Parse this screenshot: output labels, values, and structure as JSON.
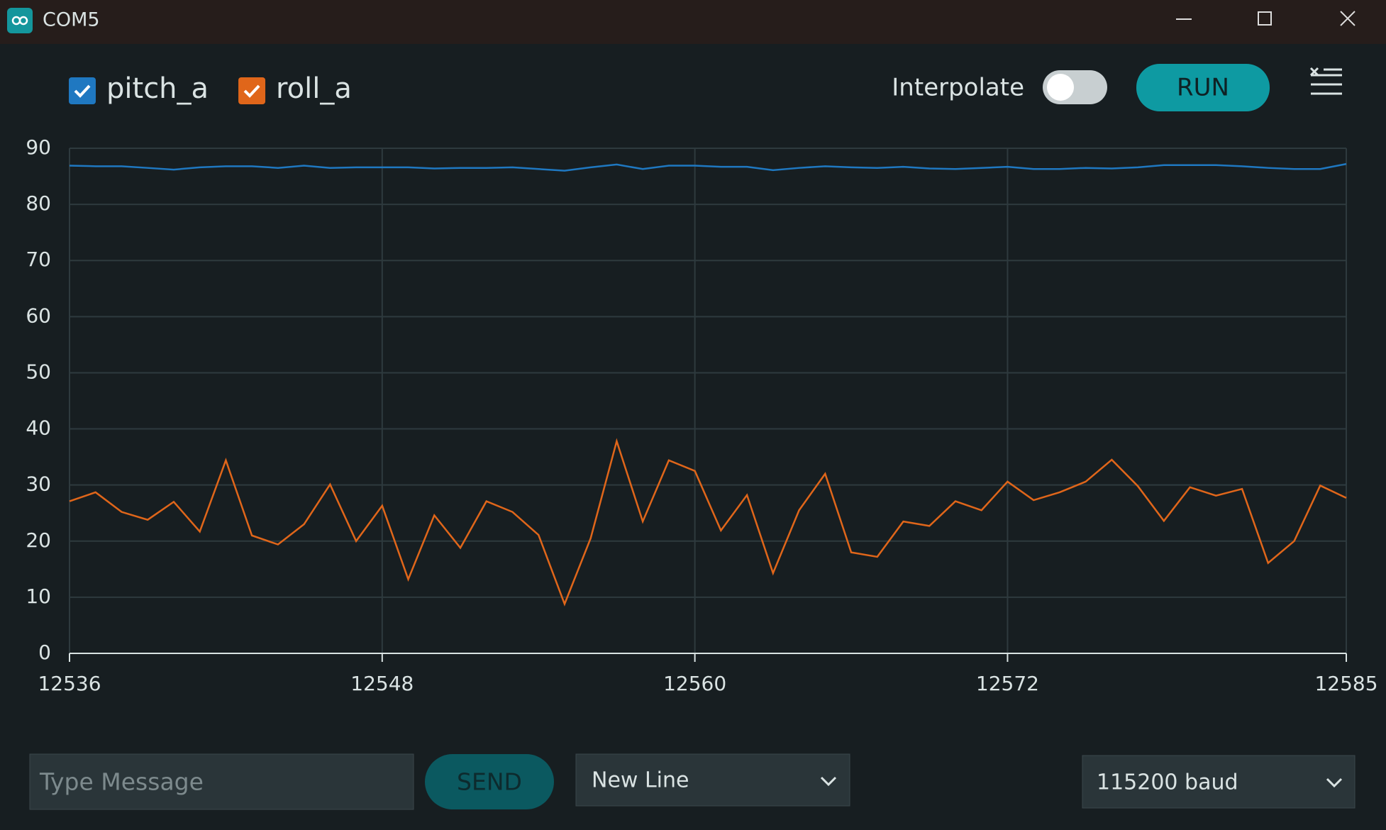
{
  "window": {
    "title": "COM5"
  },
  "controls": {
    "interpolate": "Interpolate",
    "run": "RUN"
  },
  "chart_data": {
    "type": "line",
    "x": [
      12536,
      12537,
      12538,
      12539,
      12540,
      12541,
      12542,
      12543,
      12544,
      12545,
      12546,
      12547,
      12548,
      12549,
      12550,
      12551,
      12552,
      12553,
      12554,
      12555,
      12556,
      12557,
      12558,
      12559,
      12560,
      12561,
      12562,
      12563,
      12564,
      12565,
      12566,
      12567,
      12568,
      12569,
      12570,
      12571,
      12572,
      12573,
      12574,
      12575,
      12576,
      12577,
      12578,
      12579,
      12580,
      12581,
      12582,
      12583,
      12584,
      12585
    ],
    "series": [
      {
        "name": "pitch_a",
        "color": "#1f78c1",
        "values": [
          86.9,
          86.8,
          86.8,
          86.5,
          86.2,
          86.6,
          86.8,
          86.8,
          86.5,
          86.9,
          86.5,
          86.6,
          86.6,
          86.6,
          86.4,
          86.5,
          86.5,
          86.6,
          86.3,
          86.0,
          86.6,
          87.1,
          86.3,
          86.9,
          86.9,
          86.7,
          86.7,
          86.1,
          86.5,
          86.8,
          86.6,
          86.5,
          86.7,
          86.4,
          86.3,
          86.5,
          86.7,
          86.3,
          86.3,
          86.5,
          86.4,
          86.6,
          87.0,
          87.0,
          87.0,
          86.8,
          86.5,
          86.3,
          86.3,
          87.2
        ]
      },
      {
        "name": "roll_a",
        "color": "#e0661a",
        "values": [
          27.1,
          28.7,
          25.2,
          23.8,
          27.0,
          21.7,
          34.4,
          21.0,
          19.4,
          23.0,
          30.1,
          20.0,
          26.3,
          13.2,
          24.6,
          18.8,
          27.1,
          25.2,
          21.1,
          8.8,
          20.5,
          37.8,
          23.5,
          34.4,
          32.5,
          21.9,
          28.2,
          14.3,
          25.5,
          32.0,
          18.0,
          17.2,
          23.5,
          22.7,
          27.1,
          25.5,
          30.6,
          27.3,
          28.7,
          30.6,
          34.5,
          29.8,
          23.6,
          29.6,
          28.1,
          29.3,
          16.1,
          20.0,
          29.9,
          27.7
        ]
      }
    ],
    "xlim": [
      12536,
      12585
    ],
    "xticks": [
      12536,
      12548,
      12560,
      12572,
      12585
    ],
    "ylim": [
      0,
      90
    ],
    "yticks": [
      0,
      10,
      20,
      30,
      40,
      50,
      60,
      70,
      80,
      90
    ],
    "grid": true
  },
  "footer": {
    "message_placeholder": "Type Message",
    "send": "SEND",
    "line_ending": "New Line",
    "baud": "115200 baud"
  }
}
